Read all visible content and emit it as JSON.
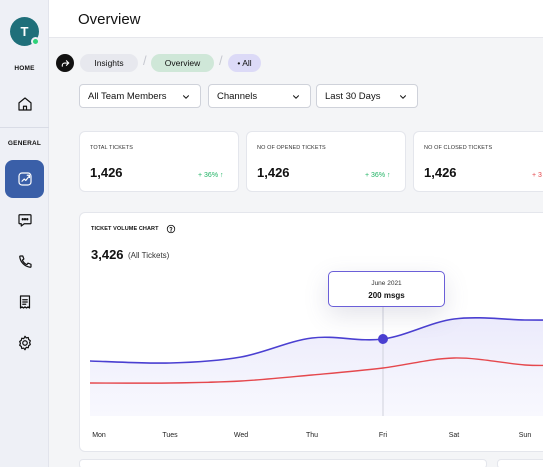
{
  "sidebar": {
    "avatar_initial": "T",
    "home_label": "HOME",
    "general_label": "GENERAL",
    "items": [
      {
        "icon": "home-icon"
      },
      {
        "icon": "analytics-icon"
      },
      {
        "icon": "chat-icon"
      },
      {
        "icon": "phone-icon"
      },
      {
        "icon": "ticket-icon"
      },
      {
        "icon": "gear-icon"
      }
    ]
  },
  "header": {
    "title": "Overview"
  },
  "breadcrumb": {
    "insights": "Insights",
    "overview": "Overview",
    "all": "• All"
  },
  "filters": {
    "members": "All Team Members",
    "channels": "Channels",
    "period": "Last 30 Days"
  },
  "stats": [
    {
      "label": "TOTAL TICKETS",
      "value": "1,426",
      "delta": "+ 36% ↑"
    },
    {
      "label": "NO OF OPENED  TICKETS",
      "value": "1,426",
      "delta": "+ 36% ↑"
    },
    {
      "label": "NO OF CLOSED TICKETS",
      "value": "1,426",
      "delta": "+ 3"
    }
  ],
  "chart": {
    "title": "TICKET VOLUME CHART",
    "total": "3,426",
    "total_sub": "(All Tickets)",
    "tooltip_date": "June 2021",
    "tooltip_value": "200 msgs"
  },
  "chart_data": {
    "type": "line",
    "categories": [
      "Mon",
      "Tues",
      "Wed",
      "Thu",
      "Fri",
      "Sat",
      "Sun"
    ],
    "series": [
      {
        "color": "#4a3fd1",
        "values": [
          52,
          50,
          56,
          75,
          74,
          94,
          93
        ]
      },
      {
        "color": "#e5484d",
        "values": [
          30,
          30,
          32,
          38,
          45,
          55,
          48
        ]
      }
    ],
    "highlight": {
      "category": "Fri"
    },
    "colors": {
      "accent": "#4a3fd1",
      "red": "#e5484d",
      "positive": "#23b466"
    }
  }
}
